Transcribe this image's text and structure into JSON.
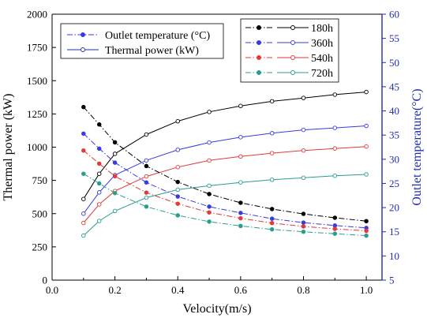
{
  "chart_data": {
    "type": "line",
    "xlabel": "Velocity(m/s)",
    "ylabel_left": "Thermal power (kW)",
    "ylabel_right": "Outlet temperature(°C)",
    "xlim": [
      0.0,
      1.05
    ],
    "ylim_left": [
      0,
      2000
    ],
    "ylim_right": [
      5,
      60
    ],
    "x_ticks": [
      "0.0",
      "0.2",
      "0.4",
      "0.6",
      "0.8",
      "1.0"
    ],
    "y_left_ticks": [
      "0",
      "250",
      "500",
      "750",
      "1000",
      "1250",
      "1500",
      "1750",
      "2000"
    ],
    "y_right_ticks": [
      "5",
      "10",
      "15",
      "20",
      "25",
      "30",
      "35",
      "40",
      "45",
      "50",
      "55",
      "60"
    ],
    "colors": {
      "left_axis": "#000000",
      "right_axis": "#1f2fa8"
    },
    "x": [
      0.1,
      0.15,
      0.2,
      0.3,
      0.4,
      0.5,
      0.6,
      0.7,
      0.8,
      0.9,
      1.0
    ],
    "legend_type": {
      "placement": "top-left",
      "items": [
        {
          "label": "Outlet temperature (°C)",
          "style": "dashdot-filled",
          "color": "#3a3adf"
        },
        {
          "label": "Thermal power (kW)",
          "style": "solid-open",
          "color": "#1f2fa8"
        }
      ]
    },
    "legend_series": {
      "placement": "top-right",
      "items": [
        "180h",
        "360h",
        "540h",
        "720h"
      ]
    },
    "series": [
      {
        "name": "180h",
        "kind": "thermal_power",
        "axis": "left",
        "color": "#000000",
        "values": [
          610,
          800,
          950,
          1095,
          1195,
          1265,
          1310,
          1345,
          1370,
          1395,
          1415
        ]
      },
      {
        "name": "360h",
        "kind": "thermal_power",
        "axis": "left",
        "color": "#3a3adf",
        "values": [
          500,
          660,
          790,
          900,
          980,
          1035,
          1075,
          1105,
          1130,
          1145,
          1160
        ]
      },
      {
        "name": "540h",
        "kind": "thermal_power",
        "axis": "left",
        "color": "#e03a3a",
        "values": [
          430,
          570,
          670,
          780,
          850,
          900,
          930,
          955,
          975,
          990,
          1005
        ]
      },
      {
        "name": "720h",
        "kind": "thermal_power",
        "axis": "left",
        "color": "#2a9d8f",
        "values": [
          335,
          445,
          520,
          620,
          680,
          710,
          735,
          755,
          770,
          785,
          795
        ]
      },
      {
        "name": "180h",
        "kind": "outlet_temperature",
        "axis": "right",
        "color": "#000000",
        "values": [
          40.8,
          37.2,
          33.5,
          28.6,
          25.3,
          22.8,
          21.0,
          19.7,
          18.7,
          17.9,
          17.2
        ]
      },
      {
        "name": "360h",
        "kind": "outlet_temperature",
        "axis": "right",
        "color": "#3a3adf",
        "values": [
          35.3,
          32.2,
          29.3,
          25.2,
          22.3,
          20.2,
          18.9,
          17.7,
          16.9,
          16.3,
          15.8
        ]
      },
      {
        "name": "540h",
        "kind": "outlet_temperature",
        "axis": "right",
        "color": "#e03a3a",
        "values": [
          31.8,
          29.1,
          26.5,
          23.1,
          20.8,
          19.0,
          17.8,
          16.8,
          16.1,
          15.6,
          15.2
        ]
      },
      {
        "name": "720h",
        "kind": "outlet_temperature",
        "axis": "right",
        "color": "#2a9d8f",
        "values": [
          27.0,
          25.0,
          23.0,
          20.2,
          18.4,
          17.1,
          16.2,
          15.5,
          15.0,
          14.6,
          14.2
        ]
      }
    ]
  }
}
